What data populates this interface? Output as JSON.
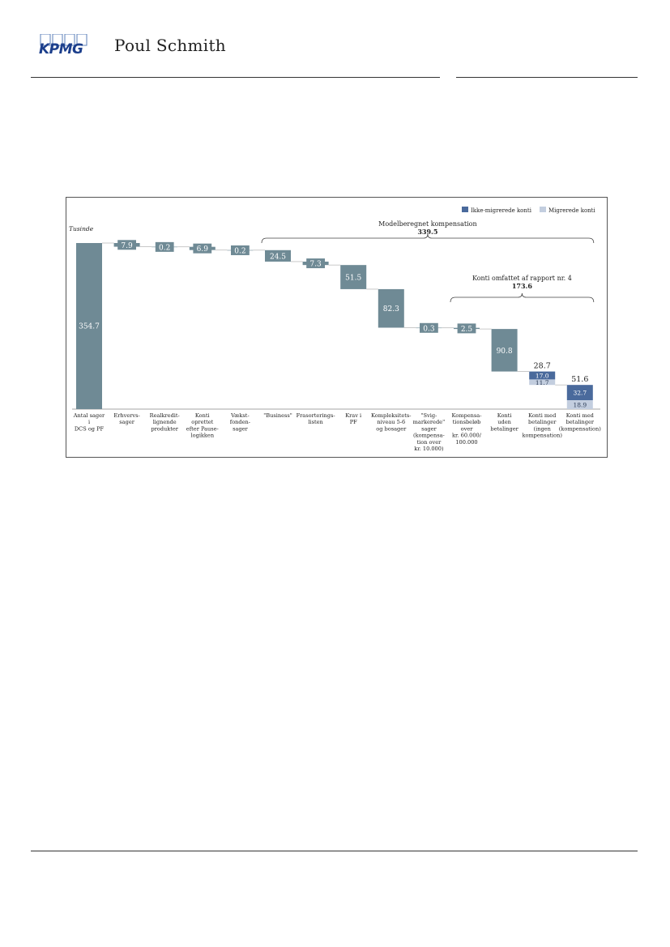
{
  "header": {
    "logo_text": "KPMG",
    "brand": "Poul Schmith"
  },
  "colors": {
    "bar": "#6f8a95",
    "non_migrated": "#4a6a9c",
    "migrated": "#c3cedf",
    "connector": "#bbbbbb",
    "text_dark": "#222222"
  },
  "chart_data": {
    "type": "bar",
    "subtype": "waterfall",
    "unit_label": "Tusinde",
    "legend_position": "top-right",
    "legend": [
      {
        "key": "non_migrated",
        "label": "Ikke-migrerede konti"
      },
      {
        "key": "migrated",
        "label": "Migrerede konti"
      }
    ],
    "ylim": [
      0,
      354.7
    ],
    "categories": [
      {
        "lines": [
          "Antal sager",
          "i",
          "DCS og PF"
        ]
      },
      {
        "lines": [
          "Erhvervs-",
          "sager"
        ]
      },
      {
        "lines": [
          "Realkredit-",
          "lignende",
          "produkter"
        ]
      },
      {
        "lines": [
          "Konti",
          "oprettet",
          "efter Pause-",
          "logikken"
        ]
      },
      {
        "lines": [
          "Vækst-",
          "fonden-",
          "sager"
        ]
      },
      {
        "lines": [
          "\"Business\""
        ]
      },
      {
        "lines": [
          "Frasorterings-",
          "listen"
        ]
      },
      {
        "lines": [
          "Krav i",
          "PF"
        ]
      },
      {
        "lines": [
          "Kompleksitets-",
          "niveau 5-6",
          "og bosager"
        ]
      },
      {
        "lines": [
          "\"Svig-",
          "markerede\"",
          "sager",
          "(kompensa-",
          "tion over",
          "kr. 10.000)"
        ]
      },
      {
        "lines": [
          "Kompensa-",
          "tionsbeløb",
          "over",
          "kr. 60.000/",
          "100.000"
        ]
      },
      {
        "lines": [
          "Konti",
          "uden",
          "betalinger"
        ]
      },
      {
        "lines": [
          "Konti med",
          "betalinger",
          "(ingen",
          "kompensation)"
        ]
      },
      {
        "lines": [
          "Konti med",
          "betalinger",
          "(kompensation)"
        ]
      }
    ],
    "bars": [
      {
        "kind": "total",
        "value": 354.7,
        "label": "354.7"
      },
      {
        "kind": "step",
        "value": 7.9,
        "label": "7.9"
      },
      {
        "kind": "step",
        "value": 0.2,
        "label": "0.2"
      },
      {
        "kind": "step",
        "value": 6.9,
        "label": "6.9"
      },
      {
        "kind": "step",
        "value": 0.2,
        "label": "0.2"
      },
      {
        "kind": "step",
        "value": 24.5,
        "label": "24.5"
      },
      {
        "kind": "step",
        "value": 7.3,
        "label": "7.3"
      },
      {
        "kind": "step",
        "value": 51.5,
        "label": "51.5"
      },
      {
        "kind": "step",
        "value": 82.3,
        "label": "82.3"
      },
      {
        "kind": "step",
        "value": 0.3,
        "label": "0.3"
      },
      {
        "kind": "step",
        "value": 2.5,
        "label": "2.5"
      },
      {
        "kind": "step",
        "value": 90.8,
        "label": "90.8"
      },
      {
        "kind": "stack",
        "total": 28.7,
        "total_label": "28.7",
        "segments": [
          {
            "key": "non_migrated",
            "value": 17.0,
            "label": "17.0"
          },
          {
            "key": "migrated",
            "value": 11.7,
            "label": "11.7"
          }
        ]
      },
      {
        "kind": "total_stack",
        "total": 51.6,
        "total_label": "51.6",
        "segments": [
          {
            "key": "non_migrated",
            "value": 32.7,
            "label": "32.7"
          },
          {
            "key": "migrated",
            "value": 18.9,
            "label": "18.9"
          }
        ]
      }
    ],
    "annotations": [
      {
        "title": "Modelberegnet kompensation",
        "value": "339.5",
        "from_index": 5,
        "to_index": 13
      },
      {
        "title": "Konti omfattet af rapport nr. 4",
        "value": "173.6",
        "from_index": 10,
        "to_index": 13
      }
    ]
  }
}
